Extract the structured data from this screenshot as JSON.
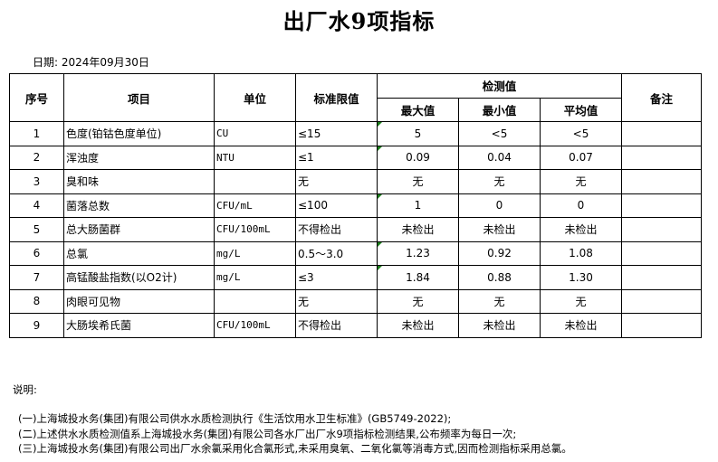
{
  "title": "出厂水9项指标",
  "date": "日期: 2024年09月30日",
  "headers": {
    "no": "序号",
    "item": "项目",
    "unit": "单位",
    "limit": "标准限值",
    "detected": "检测值",
    "max": "最大值",
    "min": "最小值",
    "avg": "平均值",
    "remark": "备注"
  },
  "rows": [
    {
      "no": "1",
      "item": "色度(铂钴色度单位)",
      "unit": "CU",
      "limit": "≤15",
      "max": "5",
      "min": "<5",
      "avg": "<5",
      "remark": ""
    },
    {
      "no": "2",
      "item": "浑浊度",
      "unit": "NTU",
      "limit": "≤1",
      "max": "0.09",
      "min": "0.04",
      "avg": "0.07",
      "remark": ""
    },
    {
      "no": "3",
      "item": "臭和味",
      "unit": "",
      "limit": "无",
      "max": "无",
      "min": "无",
      "avg": "无",
      "remark": ""
    },
    {
      "no": "4",
      "item": "菌落总数",
      "unit": "CFU/mL",
      "limit": "≤100",
      "max": "1",
      "min": "0",
      "avg": "0",
      "remark": ""
    },
    {
      "no": "5",
      "item": "总大肠菌群",
      "unit": "CFU/100mL",
      "limit": "不得检出",
      "max": "未检出",
      "min": "未检出",
      "avg": "未检出",
      "remark": ""
    },
    {
      "no": "6",
      "item": "总氯",
      "unit": "mg/L",
      "limit": "0.5～3.0",
      "max": "1.23",
      "min": "0.92",
      "avg": "1.08",
      "remark": ""
    },
    {
      "no": "7",
      "item": "高锰酸盐指数(以O2计)",
      "unit": "mg/L",
      "limit": "≤3",
      "max": "1.84",
      "min": "0.88",
      "avg": "1.30",
      "remark": ""
    },
    {
      "no": "8",
      "item": "肉眼可见物",
      "unit": "",
      "limit": "无",
      "max": "无",
      "min": "无",
      "avg": "无",
      "remark": ""
    },
    {
      "no": "9",
      "item": "大肠埃希氏菌",
      "unit": "CFU/100mL",
      "limit": "不得检出",
      "max": "未检出",
      "min": "未检出",
      "avg": "未检出",
      "remark": ""
    }
  ],
  "notes": {
    "label": "说明:",
    "lines": [
      "(一)上海城投水务(集团)有限公司供水水质检测执行《生活饮用水卫生标准》(GB5749-2022);",
      "(二)上述供水水质检测值系上海城投水务(集团)有限公司各水厂出厂水9项指标检测结果,公布频率为每日一次;",
      "(三)上海城投水务(集团)有限公司出厂水余氯采用化合氯形式,未采用臭氧、二氧化氯等消毒方式,因而检测指标采用总氯。"
    ]
  }
}
